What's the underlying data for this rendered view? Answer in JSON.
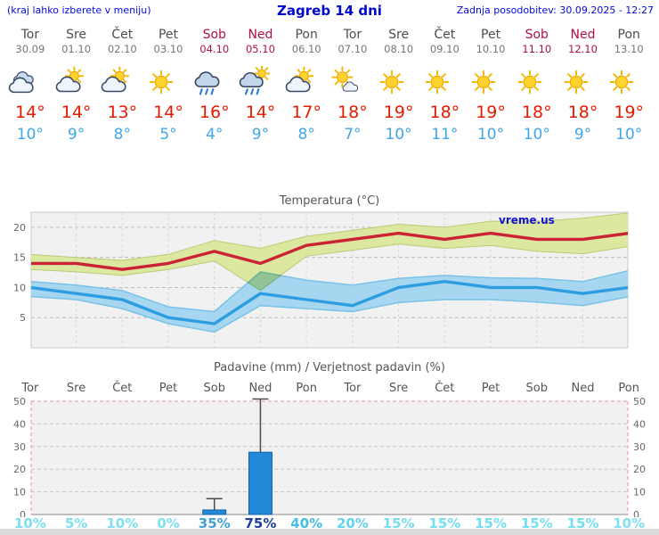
{
  "header": {
    "left": "(kraj lahko izberete v meniju)",
    "title": "Zagreb 14 dni",
    "right": "Zadnja posodobitev: 30.09.2025 - 12:27"
  },
  "colors": {
    "header_blue": "#0008cc",
    "weekend_red": "#b01040",
    "tmax_red": "#e31b00",
    "tmin_blue": "#3fa6e8",
    "bar_blue": "#2288d8"
  },
  "days": [
    {
      "name": "Tor",
      "date": "30.09",
      "weekend": false,
      "icon": "cloudy",
      "tmax": "14°",
      "tmin": "10°"
    },
    {
      "name": "Sre",
      "date": "01.10",
      "weekend": false,
      "icon": "partly-cloudy",
      "tmax": "14°",
      "tmin": "9°"
    },
    {
      "name": "Čet",
      "date": "02.10",
      "weekend": false,
      "icon": "partly-cloudy",
      "tmax": "13°",
      "tmin": "8°"
    },
    {
      "name": "Pet",
      "date": "03.10",
      "weekend": false,
      "icon": "sunny",
      "tmax": "14°",
      "tmin": "5°"
    },
    {
      "name": "Sob",
      "date": "04.10",
      "weekend": true,
      "icon": "rain",
      "tmax": "16°",
      "tmin": "4°"
    },
    {
      "name": "Ned",
      "date": "05.10",
      "weekend": true,
      "icon": "rain-sun",
      "tmax": "14°",
      "tmin": "9°"
    },
    {
      "name": "Pon",
      "date": "06.10",
      "weekend": false,
      "icon": "partly-cloudy",
      "tmax": "17°",
      "tmin": "8°"
    },
    {
      "name": "Tor",
      "date": "07.10",
      "weekend": false,
      "icon": "mostly-sunny",
      "tmax": "18°",
      "tmin": "7°"
    },
    {
      "name": "Sre",
      "date": "08.10",
      "weekend": false,
      "icon": "sunny",
      "tmax": "19°",
      "tmin": "10°"
    },
    {
      "name": "Čet",
      "date": "09.10",
      "weekend": false,
      "icon": "sunny",
      "tmax": "18°",
      "tmin": "11°"
    },
    {
      "name": "Pet",
      "date": "10.10",
      "weekend": false,
      "icon": "sunny",
      "tmax": "19°",
      "tmin": "10°"
    },
    {
      "name": "Sob",
      "date": "11.10",
      "weekend": true,
      "icon": "sunny",
      "tmax": "18°",
      "tmin": "10°"
    },
    {
      "name": "Ned",
      "date": "12.10",
      "weekend": true,
      "icon": "sunny",
      "tmax": "18°",
      "tmin": "9°"
    },
    {
      "name": "Pon",
      "date": "13.10",
      "weekend": false,
      "icon": "sunny",
      "tmax": "19°",
      "tmin": "10°"
    }
  ],
  "chart_data": [
    {
      "type": "line",
      "title": "Temperatura (°C)",
      "watermark": "vreme.us",
      "categories": [
        "Tor",
        "Sre",
        "Čet",
        "Pet",
        "Sob",
        "Ned",
        "Pon",
        "Tor",
        "Sre",
        "Čet",
        "Pet",
        "Sob",
        "Ned",
        "Pon"
      ],
      "ylim": [
        0,
        22.5
      ],
      "yticks": [
        5,
        10,
        15,
        20
      ],
      "grid": "dashed",
      "legend": "none",
      "series": [
        {
          "name": "tmax",
          "values": [
            14,
            14,
            13,
            14,
            16,
            14,
            17,
            18,
            19,
            18,
            19,
            18,
            18,
            19
          ],
          "color": "#cc2236"
        },
        {
          "name": "tmin",
          "values": [
            10,
            9,
            8,
            5,
            4,
            9,
            8,
            7,
            10,
            11,
            10,
            10,
            9,
            10
          ],
          "color": "#2b9de0"
        }
      ],
      "bands": [
        {
          "name": "tmax-range",
          "upper": [
            15.5,
            15,
            14.5,
            15.5,
            17.8,
            16.5,
            18.5,
            19.5,
            20.5,
            20,
            21,
            21,
            21.5,
            22.4
          ],
          "lower": [
            13,
            12.6,
            12,
            13,
            14.4,
            9.5,
            15.2,
            16.2,
            17.2,
            16.5,
            17,
            16,
            15.6,
            16.8
          ],
          "fill": "#dce8a0"
        },
        {
          "name": "tmin-range",
          "upper": [
            11,
            10.4,
            9.5,
            6.8,
            6,
            12.6,
            11.2,
            10.4,
            11.5,
            12,
            11.6,
            11.5,
            11,
            12.8
          ],
          "lower": [
            8.5,
            8,
            6.5,
            4,
            2.6,
            7,
            6.5,
            6,
            7.5,
            8,
            8,
            7.6,
            7,
            8.5
          ],
          "fill": "#9fd3ef"
        }
      ]
    },
    {
      "type": "bar",
      "title": "Padavine (mm) / Verjetnost padavin (%)",
      "categories": [
        "Tor",
        "Sre",
        "Čet",
        "Pet",
        "Sob",
        "Ned",
        "Pon",
        "Tor",
        "Sre",
        "Čet",
        "Pet",
        "Sob",
        "Ned",
        "Pon"
      ],
      "weekend": [
        false,
        false,
        false,
        false,
        true,
        true,
        false,
        false,
        false,
        false,
        false,
        true,
        true,
        false
      ],
      "values": [
        0,
        0,
        0,
        0,
        2,
        27.5,
        0,
        0,
        0,
        0,
        0,
        0,
        0,
        0
      ],
      "whiskers": [
        0,
        0,
        0,
        0,
        7,
        51,
        0,
        0,
        0,
        0,
        0,
        0,
        0,
        0
      ],
      "ylim": [
        0,
        50
      ],
      "yticks": [
        0,
        10,
        20,
        30,
        40,
        50
      ],
      "bar_color": "#2288d8",
      "probabilities": [
        {
          "label": "10%",
          "color": "#7fe0f0"
        },
        {
          "label": "5%",
          "color": "#7fe0f0"
        },
        {
          "label": "10%",
          "color": "#7fe0f0"
        },
        {
          "label": "0%",
          "color": "#7fe0f0"
        },
        {
          "label": "35%",
          "color": "#3d9fd4"
        },
        {
          "label": "75%",
          "color": "#1d3f9e"
        },
        {
          "label": "40%",
          "color": "#46bde2"
        },
        {
          "label": "20%",
          "color": "#62d5ec"
        },
        {
          "label": "15%",
          "color": "#74dff0"
        },
        {
          "label": "15%",
          "color": "#74dff0"
        },
        {
          "label": "15%",
          "color": "#74dff0"
        },
        {
          "label": "15%",
          "color": "#74dff0"
        },
        {
          "label": "15%",
          "color": "#74dff0"
        },
        {
          "label": "10%",
          "color": "#7fe0f0"
        }
      ]
    }
  ]
}
